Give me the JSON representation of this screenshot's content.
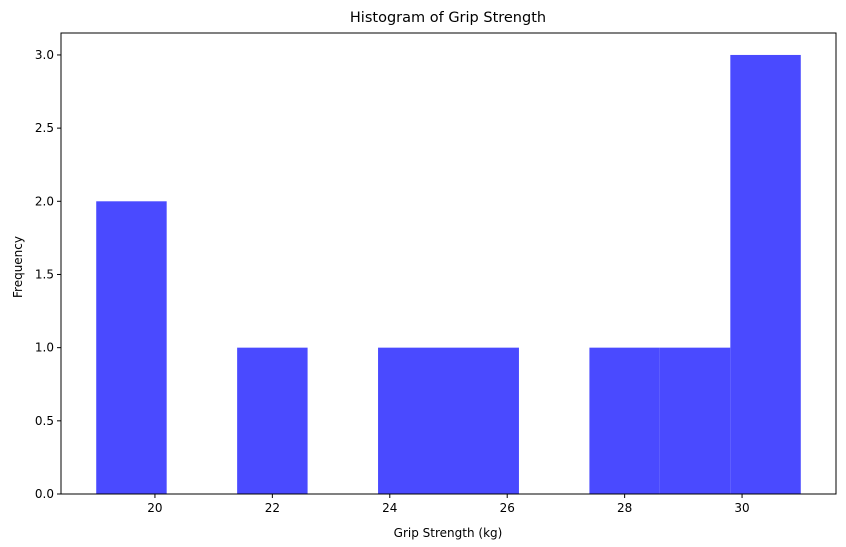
{
  "chart_data": {
    "type": "bar",
    "title": "Histogram of Grip Strength",
    "xlabel": "Grip Strength (kg)",
    "ylabel": "Frequency",
    "xlim": [
      18.4,
      31.6
    ],
    "ylim": [
      0,
      3.15
    ],
    "xticks": [
      20,
      22,
      24,
      26,
      28,
      30
    ],
    "yticks": [
      0.0,
      0.5,
      1.0,
      1.5,
      2.0,
      2.5,
      3.0
    ],
    "ytick_labels": [
      "0.0",
      "0.5",
      "1.0",
      "1.5",
      "2.0",
      "2.5",
      "3.0"
    ],
    "bin_edges": [
      19,
      20.2,
      21.4,
      22.6,
      23.8,
      25,
      26.2,
      27.4,
      28.6,
      29.8,
      31
    ],
    "values": [
      2,
      0,
      1,
      0,
      1,
      1,
      0,
      1,
      1,
      3
    ],
    "bar_color": "#4a4aff",
    "grid": false,
    "legend": "none"
  }
}
